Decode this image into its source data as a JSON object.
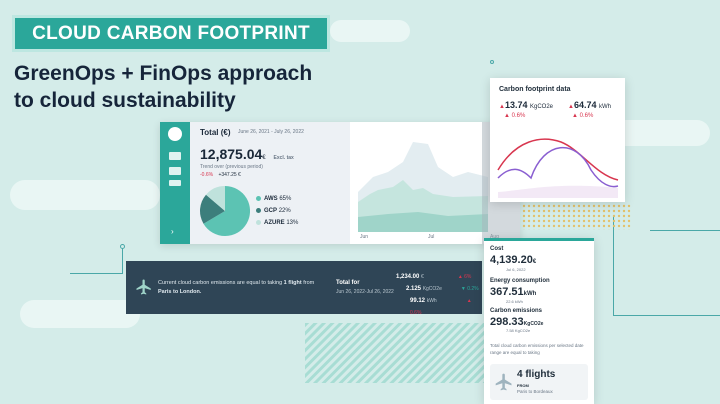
{
  "header": {
    "tag": "CLOUD CARBON FOOTPRINT",
    "headline": "GreenOps + FinOps approach\nto cloud sustainability"
  },
  "dashboard": {
    "title": "Total (€)",
    "date_range": "June 26, 2021 - July 26, 2022",
    "total_value": "12,875.04",
    "total_currency": "€",
    "total_note": "Excl. tax",
    "trend_label": "Trend over (previous period)",
    "trend_pct": "-0.6%",
    "trend_value": "+347.25 €",
    "legend": [
      {
        "label": "AWS",
        "pct": "65%",
        "color": "#5cc3b3"
      },
      {
        "label": "GCP",
        "pct": "22%",
        "color": "#3c7e7c"
      },
      {
        "label": "AZURE",
        "pct": "13%",
        "color": "#bfe2dc"
      }
    ],
    "x_labels": [
      "Jun",
      "Jul",
      "Aug"
    ]
  },
  "carbon_card": {
    "title": "Carbon footprint data",
    "kg_value": "13.74",
    "kg_unit": "KgCO2e",
    "kg_change": "0.6%",
    "kwh_value": "64.74",
    "kwh_unit": "kWh",
    "kwh_change": "0.6%"
  },
  "banner": {
    "message_pre": "Current cloud carbon emissions are equal to taking ",
    "message_bold1": "1 flight",
    "message_mid": " from ",
    "message_bold2": "Paris to London.",
    "total_label": "Total for",
    "total_dates": "Jun 26, 2022-Jul 26, 2022",
    "rows": [
      {
        "value": "1,234.00",
        "unit": "€",
        "change": "6%",
        "dir": "up"
      },
      {
        "value": "2.125",
        "unit": "KgCO2e",
        "change": "0.2%",
        "dir": "down"
      },
      {
        "value": "99.12",
        "unit": "kWh",
        "change": "0.6%",
        "dir": "up"
      }
    ]
  },
  "side_card": {
    "cost_label": "Cost",
    "cost_value": "4,139.20",
    "cost_unit": "€",
    "cost_sub": "Jul 6, 2022",
    "energy_label": "Energy consumption",
    "energy_value": "367.51",
    "energy_unit": "kWh",
    "energy_sub": "22.6 kWh",
    "carbon_label": "Carbon emissions",
    "carbon_value": "298.33",
    "carbon_unit": "KgCO2e",
    "carbon_sub": "7.58 KgCO2e",
    "equiv_text": "Total cloud carbon emissions per selected date range are equal to taking",
    "flights": "4 flights",
    "from_label": "FROM",
    "route": "Paris to Bordeaux"
  },
  "colors": {
    "teal": "#2ba79a",
    "navy": "#2f4556",
    "red": "#d8364f",
    "purple": "#8a5fd1"
  }
}
